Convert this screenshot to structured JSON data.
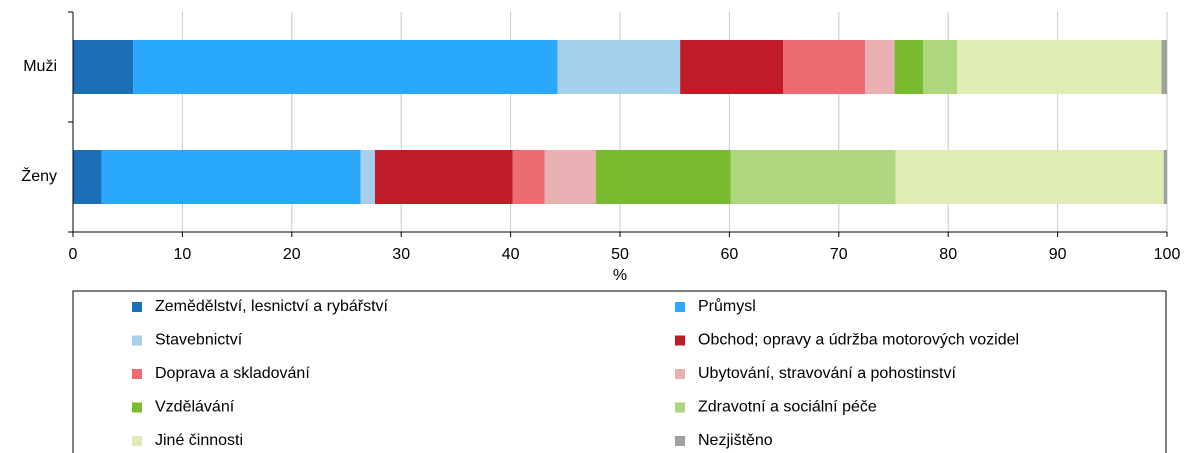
{
  "chart_data": {
    "type": "stacked-barh",
    "categories": [
      "Muži",
      "Ženy"
    ],
    "series": [
      {
        "name": "Zemědělství, lesnictví a rybářství",
        "color": "#1b6fb7",
        "values": [
          5.5,
          2.6
        ]
      },
      {
        "name": "Průmysl",
        "color": "#2aa8fb",
        "values": [
          38.8,
          23.7
        ]
      },
      {
        "name": "Stavebnictví",
        "color": "#a6cfec",
        "values": [
          11.2,
          1.3
        ]
      },
      {
        "name": "Obchod; opravy a údržba motorových vozidel",
        "color": "#c01c27",
        "values": [
          9.4,
          12.6
        ]
      },
      {
        "name": "Doprava a skladování",
        "color": "#ee6b73",
        "values": [
          7.5,
          2.9
        ]
      },
      {
        "name": "Ubytování, stravování a pohostinství",
        "color": "#e8b0b3",
        "values": [
          2.7,
          4.7
        ]
      },
      {
        "name": "Vzdělávání",
        "color": "#78bb2e",
        "values": [
          2.6,
          12.3
        ]
      },
      {
        "name": "Zdravotní a sociální péče",
        "color": "#add67f",
        "values": [
          3.1,
          15.1
        ]
      },
      {
        "name": "Jiné činnosti",
        "color": "#dfedb5",
        "values": [
          18.7,
          24.5
        ]
      },
      {
        "name": "Nezjištěno",
        "color": "#a0a0a0",
        "values": [
          0.5,
          0.3
        ]
      }
    ],
    "xlabel": "%",
    "xlim": [
      0,
      100
    ],
    "xticks": [
      0,
      10,
      20,
      30,
      40,
      50,
      60,
      70,
      80,
      90,
      100
    ],
    "grid": true,
    "legend": "bottom"
  }
}
